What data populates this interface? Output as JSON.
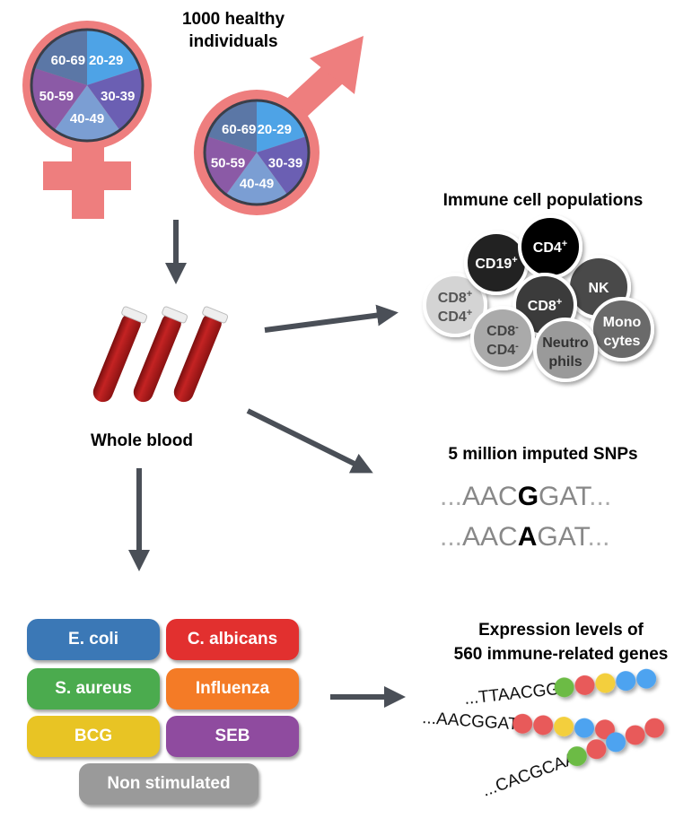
{
  "cohort": {
    "title_line1": "1000 healthy",
    "title_line2": "individuals",
    "age_groups": [
      "20-29",
      "30-39",
      "40-49",
      "50-59",
      "60-69"
    ],
    "age_colors": [
      "#4ea3e6",
      "#6b5fb3",
      "#7b9ed3",
      "#8b5aa6",
      "#5b77a6"
    ],
    "symbol_color": "#ee7e7e"
  },
  "blood": {
    "label": "Whole blood",
    "tube_color": "#b51c1c"
  },
  "cells": {
    "title": "Immune cell populations",
    "items": [
      {
        "line1": "CD8",
        "sup1": "+",
        "line2": "CD4",
        "sup2": "+",
        "fill": "#d4d4d4",
        "text": "#555555"
      },
      {
        "line1": "CD19",
        "sup1": "+",
        "fill": "#222222",
        "text": "#ffffff"
      },
      {
        "line1": "CD4",
        "sup1": "+",
        "fill": "#000000",
        "text": "#ffffff"
      },
      {
        "line1": "NK",
        "fill": "#4a4a4a",
        "text": "#ffffff"
      },
      {
        "line1": "CD8",
        "sup1": "+",
        "fill": "#3a3a3a",
        "text": "#ffffff"
      },
      {
        "line1": "CD8",
        "sup1": "-",
        "line2": "CD4",
        "sup2": "-",
        "fill": "#aaaaaa",
        "text": "#444444"
      },
      {
        "line1": "Mono",
        "line2": "cytes",
        "fill": "#6a6a6a",
        "text": "#ffffff"
      },
      {
        "line1": "Neutro",
        "line2": "phils",
        "fill": "#9a9a9a",
        "text": "#333333"
      }
    ]
  },
  "snps": {
    "title": "5 million imputed SNPs",
    "seq1": {
      "dots_left": "...",
      "pre": "AAC",
      "allele": "G",
      "post": "GAT",
      "dots_right": "..."
    },
    "seq2": {
      "dots_left": "...",
      "pre": "AAC",
      "allele": "A",
      "post": "GAT",
      "dots_right": "..."
    }
  },
  "stimuli": [
    {
      "label": "E. coli",
      "color": "#3b78b6"
    },
    {
      "label": "C. albicans",
      "color": "#e2302f"
    },
    {
      "label": "S. aureus",
      "color": "#4bab4e"
    },
    {
      "label": "Influenza",
      "color": "#f47b26"
    },
    {
      "label": "BCG",
      "color": "#e8c424"
    },
    {
      "label": "SEB",
      "color": "#8f4b9f"
    },
    {
      "label": "Non stimulated",
      "color": "#9a9a9a"
    }
  ],
  "expression": {
    "title_line1": "Expression levels of",
    "title_line2": "560 immune-related genes",
    "rows": [
      {
        "seq": "...TTAACGG",
        "beads": [
          "#6cbb45",
          "#e85a5a",
          "#f3cf3c",
          "#4ea3f0",
          "#4ea3f0"
        ]
      },
      {
        "seq": "...AACGGAT",
        "beads": [
          "#e85a5a",
          "#e85a5a",
          "#f3cf3c",
          "#4ea3f0",
          "#e85a5a"
        ]
      },
      {
        "seq": "...CACGCAA",
        "beads": [
          "#6cbb45",
          "#e85a5a",
          "#4ea3f0",
          "#e85a5a",
          "#e85a5a"
        ]
      }
    ]
  },
  "arrow_color": "#4a4f57"
}
